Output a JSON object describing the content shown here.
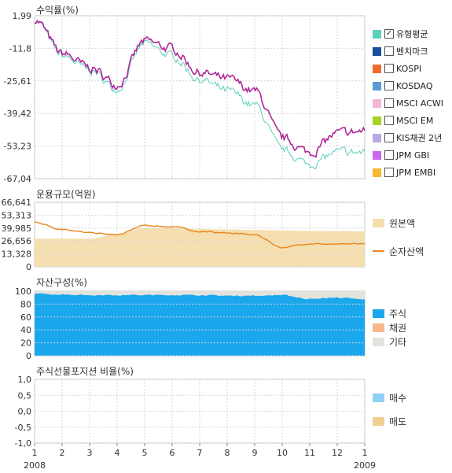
{
  "panel1": {
    "title": "수익률(%)",
    "yticks": [
      "1,99",
      "-11,8",
      "-25,61",
      "-39,42",
      "-53,23",
      "-67,04"
    ],
    "legend": [
      {
        "label": "유형평균",
        "color": "#5fcfbb",
        "checked": true
      },
      {
        "label": "벤치마크",
        "color": "#1a4e9a",
        "checked": false
      },
      {
        "label": "KOSPI",
        "color": "#f26a2e",
        "checked": false
      },
      {
        "label": "KOSDAQ",
        "color": "#5b9bd5",
        "checked": false
      },
      {
        "label": "MSCI ACWI",
        "color": "#f5b6d6",
        "checked": false
      },
      {
        "label": "MSCI EM",
        "color": "#a8d222",
        "checked": false
      },
      {
        "label": "KIS채권 2년",
        "color": "#b8a9e3",
        "checked": false
      },
      {
        "label": "JPM GBI",
        "color": "#cc66ee",
        "checked": false
      },
      {
        "label": "JPM EMBI",
        "color": "#f7b733",
        "checked": false
      }
    ]
  },
  "panel2": {
    "title": "운용규모(억원)",
    "yticks": [
      "66,641",
      "53,313",
      "39,985",
      "26,656",
      "13,328",
      "0"
    ],
    "legend": [
      {
        "label": "원본액",
        "color": "#f5deb0",
        "kind": "area"
      },
      {
        "label": "순자산액",
        "color": "#e8861a",
        "kind": "line"
      }
    ]
  },
  "panel3": {
    "title": "자산구성(%)",
    "yticks": [
      "100",
      "80",
      "60",
      "40",
      "20",
      "0"
    ],
    "legend": [
      {
        "label": "주식",
        "color": "#1aa7ec"
      },
      {
        "label": "채권",
        "color": "#f7b98c"
      },
      {
        "label": "기타",
        "color": "#e3e3de"
      }
    ]
  },
  "panel4": {
    "title": "주식선물포지션 비율(%)",
    "yticks": [
      "1,0",
      "0,5",
      "0,0",
      "-0,5",
      "-1,0"
    ],
    "legend": [
      {
        "label": "매수",
        "color": "#8fd0f5"
      },
      {
        "label": "매도",
        "color": "#f0d090"
      }
    ]
  },
  "xaxis": {
    "ticks": [
      "1",
      "2",
      "3",
      "4",
      "5",
      "6",
      "7",
      "8",
      "9",
      "10",
      "11",
      "12",
      "1"
    ],
    "start_year": "2008",
    "end_year": "2009"
  },
  "chart_data": [
    {
      "type": "line",
      "title": "수익률(%)",
      "x": [
        "2008-01",
        "2008-02",
        "2008-03",
        "2008-04",
        "2008-05",
        "2008-06",
        "2008-07",
        "2008-08",
        "2008-09",
        "2008-10",
        "2008-11",
        "2008-12",
        "2009-01"
      ],
      "ylim": [
        -67.04,
        1.99
      ],
      "series": [
        {
          "name": "",
          "color": "#b0289a",
          "values": [
            0.5,
            -14,
            -20,
            -27,
            -9,
            -12,
            -22,
            -25,
            -30,
            -50,
            -56,
            -48,
            -47
          ]
        },
        {
          "name": "",
          "color": "#5fcfbb",
          "values": [
            0.5,
            -15,
            -21,
            -29,
            -10,
            -15,
            -25,
            -30,
            -36,
            -55,
            -61,
            -56,
            -56
          ]
        }
      ]
    },
    {
      "type": "area",
      "title": "운용규모(억원)",
      "x": [
        "2008-01",
        "2008-02",
        "2008-03",
        "2008-04",
        "2008-05",
        "2008-06",
        "2008-07",
        "2008-08",
        "2008-09",
        "2008-10",
        "2008-11",
        "2008-12",
        "2009-01"
      ],
      "ylim": [
        0,
        66641
      ],
      "series": [
        {
          "name": "원본액",
          "values": [
            29000,
            29000,
            29000,
            34000,
            40000,
            40000,
            39000,
            38500,
            38000,
            37500,
            37000,
            36800,
            36600
          ]
        },
        {
          "name": "순자산액",
          "values": [
            46000,
            39000,
            35000,
            33000,
            42500,
            41500,
            36500,
            35000,
            33000,
            20000,
            24000,
            23000,
            24000
          ]
        }
      ]
    },
    {
      "type": "area",
      "title": "자산구성(%)",
      "x": [
        "2008-01",
        "2008-02",
        "2008-03",
        "2008-04",
        "2008-05",
        "2008-06",
        "2008-07",
        "2008-08",
        "2008-09",
        "2008-10",
        "2008-11",
        "2008-12",
        "2009-01"
      ],
      "ylim": [
        0,
        100
      ],
      "series": [
        {
          "name": "주식",
          "values": [
            96,
            95,
            94,
            94,
            94,
            94,
            94,
            93,
            93,
            94,
            88,
            90,
            87
          ]
        },
        {
          "name": "채권",
          "values": [
            0,
            0,
            0,
            0,
            0,
            0,
            0,
            0,
            0,
            0,
            0,
            0,
            0
          ]
        },
        {
          "name": "기타",
          "values": [
            4,
            5,
            6,
            6,
            6,
            6,
            6,
            7,
            7,
            6,
            12,
            10,
            13
          ]
        }
      ]
    },
    {
      "type": "bar",
      "title": "주식선물포지션 비율(%)",
      "ylim": [
        -1.0,
        1.0
      ],
      "series": [
        {
          "name": "매수",
          "values": []
        },
        {
          "name": "매도",
          "values": []
        }
      ]
    }
  ]
}
